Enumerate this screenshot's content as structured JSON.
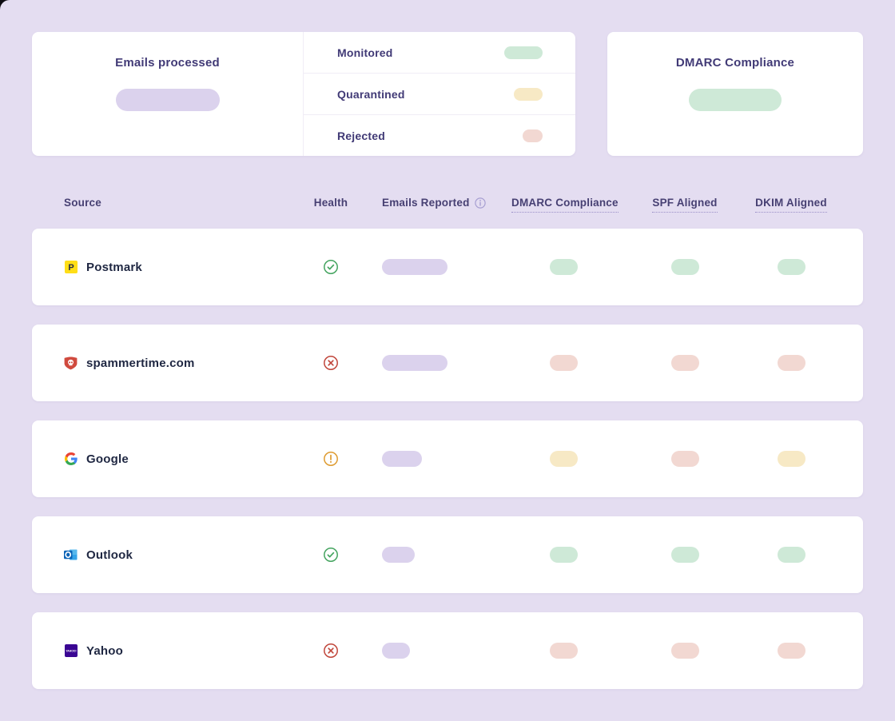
{
  "colors": {
    "background": "#e4ddf1",
    "card": "#ffffff",
    "heading_text": "#413a76",
    "header_text": "#474073",
    "source_text": "#1f2742",
    "pill_purple": "#dbd2ed",
    "pill_green": "#cee9d7",
    "pill_yellow": "#f7e9c5",
    "pill_red": "#f2d8d2",
    "health_ok": "#44a45f",
    "health_fail": "#c0453a",
    "health_warn": "#de9b30"
  },
  "summary": {
    "emails_processed_title": "Emails processed",
    "dmarc_compliance_title": "DMARC Compliance",
    "legend": [
      {
        "label": "Monitored",
        "status": "monitored",
        "pill_width": 48
      },
      {
        "label": "Quarantined",
        "status": "quarantined",
        "pill_width": 36
      },
      {
        "label": "Rejected",
        "status": "rejected",
        "pill_width": 25
      }
    ]
  },
  "table": {
    "headers": {
      "source": "Source",
      "health": "Health",
      "emails_reported": "Emails Reported",
      "dmarc_compliance": "DMARC Compliance",
      "spf_aligned": "SPF Aligned",
      "dkim_aligned": "DKIM Aligned"
    },
    "rows": [
      {
        "source": "Postmark",
        "icon": "postmark-logo",
        "health": "ok",
        "emails_pill_width": 82,
        "dmarc_compliance": "ok",
        "spf_aligned": "ok",
        "dkim_aligned": "ok"
      },
      {
        "source": "spammertime.com",
        "icon": "skull-shield",
        "health": "fail",
        "emails_pill_width": 82,
        "dmarc_compliance": "fail",
        "spf_aligned": "fail",
        "dkim_aligned": "fail"
      },
      {
        "source": "Google",
        "icon": "google-logo",
        "health": "warn",
        "emails_pill_width": 50,
        "dmarc_compliance": "warn",
        "spf_aligned": "fail",
        "dkim_aligned": "warn"
      },
      {
        "source": "Outlook",
        "icon": "outlook-logo",
        "health": "ok",
        "emails_pill_width": 41,
        "dmarc_compliance": "ok",
        "spf_aligned": "ok",
        "dkim_aligned": "ok"
      },
      {
        "source": "Yahoo",
        "icon": "yahoo-logo",
        "health": "fail",
        "emails_pill_width": 35,
        "dmarc_compliance": "fail",
        "spf_aligned": "fail",
        "dkim_aligned": "fail"
      }
    ]
  }
}
